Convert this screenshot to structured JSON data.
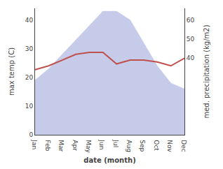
{
  "chart_data": {
    "type": "area",
    "xlabel": "date (month)",
    "ylabel": "max temp (C)",
    "y2label": "med. precipitation (kg/m2)",
    "categories": [
      "Jan",
      "Feb",
      "Mar",
      "Apr",
      "May",
      "Jun",
      "Jul",
      "Aug",
      "Sep",
      "Oct",
      "Nov",
      "Dec"
    ],
    "series": [
      {
        "type": "area",
        "color": "#c5cbe8",
        "values": [
          19,
          23,
          28,
          33,
          38,
          43,
          43,
          40,
          32,
          24,
          18,
          16
        ]
      },
      {
        "type": "line",
        "color": "#c0504d",
        "axis": "y2",
        "values": [
          34,
          36,
          39,
          42,
          43,
          43,
          37,
          39,
          39,
          38,
          36,
          40
        ]
      }
    ],
    "ylim": [
      0,
      44
    ],
    "yticks": [
      0,
      10,
      20,
      30,
      40
    ],
    "y2lim": [
      0,
      66
    ],
    "y2ticks": [
      40,
      50,
      60
    ],
    "grid": false
  }
}
